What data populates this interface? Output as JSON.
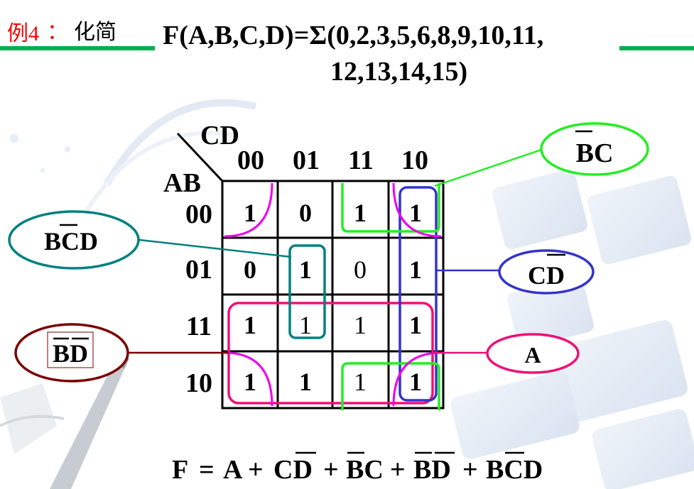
{
  "header": {
    "example_label": "例4",
    "colon": "：",
    "task": "化简",
    "function_line1": "F(A,B,C,D)=Σ(0,2,3,5,6,8,9,10,11,",
    "function_line2": "12,13,14,15)"
  },
  "kmap": {
    "corner_cols_label": "CD",
    "corner_rows_label": "AB",
    "col_labels": [
      "00",
      "01",
      "11",
      "10"
    ],
    "row_labels": [
      "00",
      "01",
      "11",
      "10"
    ],
    "cells": [
      [
        "1",
        "0",
        "1",
        "1"
      ],
      [
        "0",
        "1",
        "0",
        "1"
      ],
      [
        "1",
        "1",
        "1",
        "1"
      ],
      [
        "1",
        "1",
        "1",
        "1"
      ]
    ]
  },
  "colors": {
    "header_line": "#00b050",
    "example_red": "#ff0000",
    "bc_green": "#22ee22",
    "cd_blue": "#3333cc",
    "bcd_teal": "#008080",
    "a_pink": "#ee1177",
    "bd_magenta": "#ee00ee",
    "bd_maroon": "#7a0000"
  },
  "terms": {
    "bc": "BC",
    "cdbar": "CD",
    "bcd": "BCD",
    "a": "A",
    "bdbar": "BD"
  },
  "result": {
    "f": "F",
    "eq": "=",
    "t1": "A",
    "plus": "+",
    "t2": "CD",
    "t3": "BC",
    "t4": "BD",
    "t5": "BCD"
  }
}
